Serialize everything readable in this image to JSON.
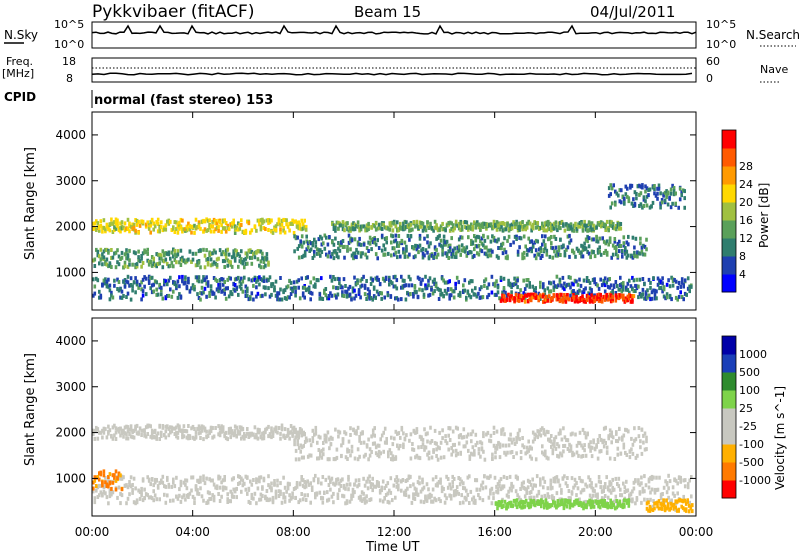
{
  "header": {
    "station": "Pykkvibaer (fitACF)",
    "beam": "Beam 15",
    "date": "04/Jul/2011"
  },
  "panel_labels": {
    "nsky": "N.Sky",
    "nsearch": "N.Search",
    "freq": "Freq.",
    "freq_unit": "[MHz]",
    "nave": "Nave",
    "cpid": "CPID",
    "cpid_value": "normal (fast stereo) 153"
  },
  "noise_axis": {
    "left": [
      "10^5",
      "10^0"
    ],
    "right": [
      "10^5",
      "10^0"
    ]
  },
  "freq_axis": {
    "left": [
      "18",
      "8"
    ],
    "right": [
      "60",
      "0"
    ]
  },
  "x_axis": {
    "label": "Time UT",
    "ticks": [
      "00:00",
      "04:00",
      "08:00",
      "12:00",
      "16:00",
      "20:00",
      "00:00"
    ]
  },
  "colors": {
    "power": [
      "#0000ff",
      "#1e3fb0",
      "#2f7d6e",
      "#5aa05a",
      "#a0c040",
      "#ffd800",
      "#ff9a00",
      "#ff5a00",
      "#ff0000"
    ],
    "velocity": [
      "#ff0000",
      "#ff7a00",
      "#ffb000",
      "#c8c8c0",
      "#c8c8c0",
      "#7ed34a",
      "#2e8b2e",
      "#1a3fb8",
      "#0000a8"
    ]
  },
  "chart_data": [
    {
      "type": "heatmap",
      "name": "Power",
      "xlabel": "Time UT",
      "ylabel": "Slant Range [km]",
      "xlim": [
        0,
        24
      ],
      "ylim": [
        180,
        4500
      ],
      "y_ticks": [
        "1000",
        "2000",
        "3000",
        "4000"
      ],
      "colorbar": {
        "label": "Power [dB]",
        "ticks": [
          "4",
          "8",
          "12",
          "16",
          "20",
          "24",
          "28"
        ],
        "range": [
          0,
          30
        ]
      },
      "regions": [
        {
          "t0": 0.0,
          "t1": 8.5,
          "r_center": 2050,
          "r_width": 300,
          "value": 17
        },
        {
          "t0": 0.0,
          "t1": 7.0,
          "r_center": 1350,
          "r_width": 400,
          "value": 11
        },
        {
          "t0": 0.0,
          "t1": 23.8,
          "r_center": 700,
          "r_width": 500,
          "value": 7
        },
        {
          "t0": 8.0,
          "t1": 22.0,
          "r_center": 1600,
          "r_width": 500,
          "value": 9
        },
        {
          "t0": 9.5,
          "t1": 21.0,
          "r_center": 2050,
          "r_width": 200,
          "value": 12
        },
        {
          "t0": 16.2,
          "t1": 21.5,
          "r_center": 480,
          "r_width": 160,
          "value": 27
        },
        {
          "t0": 20.5,
          "t1": 23.5,
          "r_center": 2700,
          "r_width": 500,
          "value": 8
        }
      ]
    },
    {
      "type": "heatmap",
      "name": "Velocity",
      "xlabel": "Time UT",
      "ylabel": "Slant Range [km]",
      "xlim": [
        0,
        24
      ],
      "ylim": [
        180,
        4500
      ],
      "y_ticks": [
        "1000",
        "2000",
        "3000",
        "4000"
      ],
      "colorbar": {
        "label": "Velocity [m s^-1]",
        "ticks": [
          "1000",
          "500",
          "100",
          "25",
          "-25",
          "-100",
          "-500",
          "-1000"
        ],
        "range": [
          -1000,
          1000
        ]
      },
      "regions": [
        {
          "t0": 0.0,
          "t1": 8.5,
          "r_center": 2050,
          "r_width": 300,
          "value": 0
        },
        {
          "t0": 0.0,
          "t1": 23.8,
          "r_center": 800,
          "r_width": 600,
          "value": 0
        },
        {
          "t0": 8.0,
          "t1": 22.0,
          "r_center": 1800,
          "r_width": 700,
          "value": 0
        },
        {
          "t0": 0.0,
          "t1": 1.2,
          "r_center": 1000,
          "r_width": 400,
          "value": -600
        },
        {
          "t0": 16.0,
          "t1": 21.3,
          "r_center": 480,
          "r_width": 180,
          "value": 200
        },
        {
          "t0": 22.0,
          "t1": 23.8,
          "r_center": 450,
          "r_width": 250,
          "value": -400
        }
      ]
    }
  ]
}
